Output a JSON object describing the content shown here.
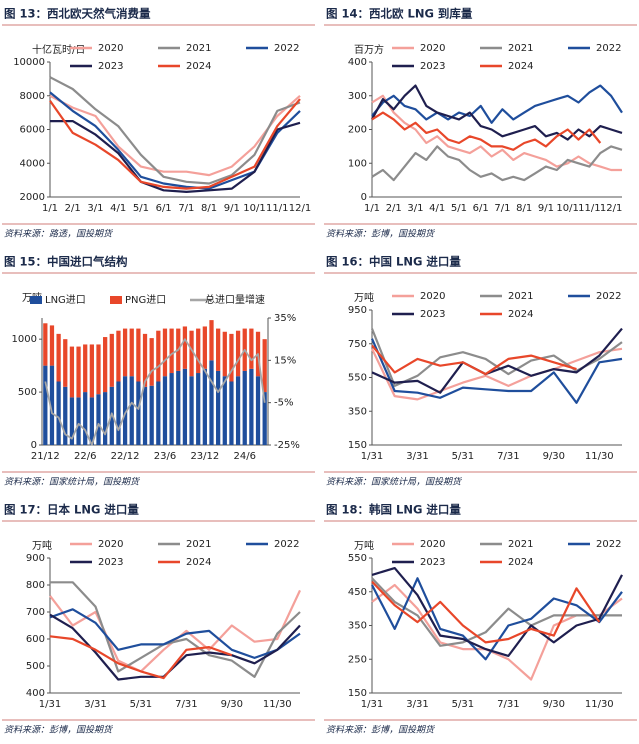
{
  "chart_data": [
    {
      "type": "line",
      "figure_title": "图 13：西北欧天然气消费量",
      "source": "资料来源：路透，国投期货",
      "ylabel": "十亿瓦时/日",
      "categories": [
        "1/1",
        "2/1",
        "3/1",
        "4/1",
        "5/1",
        "6/1",
        "7/1",
        "8/1",
        "9/1",
        "10/1",
        "11/1",
        "12/1"
      ],
      "ylim": [
        2000,
        10000
      ],
      "yticks": [
        2000,
        4000,
        6000,
        8000,
        10000
      ],
      "series": [
        {
          "name": "2020",
          "color": "#f4a09a",
          "values": [
            8000,
            7300,
            6800,
            5000,
            3800,
            3500,
            3500,
            3300,
            3800,
            5000,
            6800,
            8000
          ]
        },
        {
          "name": "2021",
          "color": "#8c8c8c",
          "values": [
            9100,
            8400,
            7200,
            6200,
            4500,
            3200,
            2900,
            2800,
            3300,
            4500,
            7100,
            7600
          ]
        },
        {
          "name": "2022",
          "color": "#1f4e9c",
          "values": [
            8200,
            7100,
            6200,
            4800,
            3200,
            2800,
            2600,
            2500,
            3000,
            3500,
            5800,
            7100
          ]
        },
        {
          "name": "2023",
          "color": "#1f1f4f",
          "values": [
            6500,
            6500,
            5700,
            4600,
            2900,
            2400,
            2300,
            2400,
            2500,
            3500,
            6000,
            6400
          ]
        },
        {
          "name": "2024",
          "color": "#e8472a",
          "values": [
            7700,
            5800,
            5100,
            4200,
            2900,
            2600,
            2500,
            2600,
            3200,
            3800,
            6200,
            7800
          ]
        }
      ]
    },
    {
      "type": "line",
      "figure_title": "图 14：西北欧 LNG 到库量",
      "source": "资料来源：彭博，国投期货",
      "ylabel": "百万方",
      "categories": [
        "1/1",
        null,
        "2/1",
        null,
        "3/1",
        null,
        "4/1",
        null,
        "5/1",
        null,
        "6/1",
        null,
        "7/1",
        null,
        "8/1",
        null,
        "9/1",
        null,
        "10/1",
        null,
        "11/1",
        null,
        "12/1",
        null
      ],
      "ylim": [
        0,
        400
      ],
      "yticks": [
        0,
        100,
        200,
        300,
        400
      ],
      "series": [
        {
          "name": "2020",
          "color": "#f4a09a",
          "values": [
            280,
            300,
            250,
            220,
            200,
            160,
            180,
            150,
            140,
            130,
            150,
            120,
            140,
            110,
            130,
            120,
            110,
            90,
            100,
            120,
            100,
            90,
            80,
            80
          ]
        },
        {
          "name": "2021",
          "color": "#8c8c8c",
          "values": [
            60,
            80,
            50,
            90,
            130,
            110,
            150,
            120,
            110,
            80,
            60,
            70,
            50,
            60,
            50,
            70,
            90,
            80,
            110,
            100,
            90,
            130,
            150,
            140
          ]
        },
        {
          "name": "2022",
          "color": "#1f4e9c",
          "values": [
            240,
            280,
            300,
            270,
            260,
            230,
            250,
            230,
            250,
            240,
            270,
            220,
            260,
            230,
            250,
            270,
            280,
            290,
            300,
            280,
            310,
            330,
            300,
            250
          ]
        },
        {
          "name": "2023",
          "color": "#1f1f4f",
          "values": [
            230,
            290,
            260,
            300,
            330,
            270,
            250,
            240,
            230,
            250,
            210,
            200,
            180,
            190,
            200,
            210,
            180,
            190,
            170,
            200,
            180,
            210,
            200,
            190
          ]
        },
        {
          "name": "2024",
          "color": "#e8472a",
          "values": [
            230,
            250,
            230,
            200,
            220,
            190,
            200,
            170,
            160,
            180,
            170,
            150,
            150,
            140,
            160,
            170,
            150,
            180,
            200,
            170,
            200,
            160,
            null,
            null
          ]
        }
      ]
    },
    {
      "type": "bar",
      "figure_title": "图 15：中国进口气结构",
      "source": "资料来源：国家统计局，国投期货",
      "ylabel": "万吨",
      "categories": [
        "21/12",
        null,
        null,
        null,
        null,
        null,
        "22/6",
        null,
        null,
        null,
        null,
        null,
        "22/12",
        null,
        null,
        null,
        null,
        null,
        "23/6",
        null,
        null,
        null,
        null,
        null,
        "23/12",
        null,
        null,
        null,
        null,
        null,
        "24/6",
        null,
        null,
        null
      ],
      "ylim": [
        0,
        1200
      ],
      "yticks": [
        0,
        500,
        1000
      ],
      "y2lim": [
        -25,
        35
      ],
      "y2ticks": [
        {
          "value": -25,
          "label": "-25%"
        },
        {
          "value": -5,
          "label": "-5%"
        },
        {
          "value": 15,
          "label": "15%"
        },
        {
          "value": 35,
          "label": "35%"
        }
      ],
      "series": [
        {
          "name": "LNG进口",
          "color": "#1f4e9c",
          "values": [
            750,
            750,
            600,
            550,
            450,
            450,
            500,
            450,
            480,
            500,
            550,
            600,
            650,
            650,
            600,
            550,
            560,
            600,
            650,
            680,
            700,
            720,
            650,
            680,
            720,
            800,
            700,
            650,
            600,
            650,
            700,
            720,
            650,
            500
          ]
        },
        {
          "name": "PNG进口",
          "color": "#e8472a",
          "values": [
            400,
            380,
            450,
            450,
            480,
            480,
            450,
            500,
            470,
            520,
            500,
            480,
            450,
            450,
            500,
            500,
            450,
            480,
            450,
            420,
            400,
            400,
            430,
            420,
            400,
            380,
            400,
            420,
            450,
            430,
            400,
            380,
            420,
            500
          ]
        },
        {
          "name": "总进口量增速",
          "color": "#a6a6a6",
          "axis": "y2",
          "values": [
            5,
            -10,
            -12,
            -20,
            -22,
            -15,
            -18,
            -25,
            -15,
            -20,
            -10,
            -18,
            -10,
            -5,
            -8,
            5,
            10,
            12,
            15,
            18,
            20,
            25,
            20,
            15,
            10,
            5,
            0,
            5,
            10,
            15,
            20,
            15,
            18,
            -5
          ]
        }
      ]
    },
    {
      "type": "line",
      "figure_title": "图 16：中国 LNG 进口量",
      "source": "资料来源：国家统计局，国投期货",
      "ylabel": "万吨",
      "categories": [
        "1/31",
        null,
        "3/31",
        null,
        "5/31",
        null,
        "7/31",
        null,
        "9/30",
        null,
        "11/30",
        null
      ],
      "ylim": [
        150,
        950
      ],
      "yticks": [
        150,
        350,
        550,
        750,
        950
      ],
      "series": [
        {
          "name": "2020",
          "color": "#f4a09a",
          "values": [
            720,
            440,
            420,
            470,
            520,
            560,
            500,
            560,
            600,
            650,
            700,
            720
          ]
        },
        {
          "name": "2021",
          "color": "#8c8c8c",
          "values": [
            840,
            500,
            560,
            670,
            700,
            660,
            570,
            650,
            680,
            590,
            660,
            760
          ]
        },
        {
          "name": "2022",
          "color": "#1f4e9c",
          "values": [
            780,
            470,
            460,
            430,
            490,
            480,
            470,
            470,
            580,
            400,
            640,
            660
          ]
        },
        {
          "name": "2023",
          "color": "#1f1f4f",
          "values": [
            580,
            520,
            530,
            460,
            640,
            570,
            620,
            560,
            600,
            580,
            680,
            840
          ]
        },
        {
          "name": "2024",
          "color": "#e8472a",
          "values": [
            740,
            580,
            660,
            620,
            640,
            570,
            660,
            680,
            640,
            600,
            null,
            null
          ]
        }
      ]
    },
    {
      "type": "line",
      "figure_title": "图 17：日本 LNG 进口量",
      "source": "资料来源：彭博，国投期货",
      "ylabel": "万吨",
      "categories": [
        "1/31",
        null,
        "3/31",
        null,
        "5/31",
        null,
        "7/31",
        null,
        "9/30",
        null,
        "11/30",
        null
      ],
      "ylim": [
        400,
        900
      ],
      "yticks": [
        400,
        500,
        600,
        700,
        800,
        900
      ],
      "series": [
        {
          "name": "2020",
          "color": "#f4a09a",
          "values": [
            760,
            650,
            700,
            520,
            480,
            560,
            630,
            560,
            650,
            590,
            600,
            780
          ]
        },
        {
          "name": "2021",
          "color": "#8c8c8c",
          "values": [
            810,
            810,
            720,
            480,
            530,
            580,
            600,
            540,
            520,
            460,
            620,
            700
          ]
        },
        {
          "name": "2022",
          "color": "#1f4e9c",
          "values": [
            680,
            710,
            660,
            560,
            580,
            580,
            620,
            630,
            560,
            530,
            560,
            620
          ]
        },
        {
          "name": "2023",
          "color": "#1f1f4f",
          "values": [
            690,
            640,
            550,
            450,
            460,
            460,
            540,
            550,
            540,
            510,
            560,
            650
          ]
        },
        {
          "name": "2024",
          "color": "#e8472a",
          "values": [
            610,
            600,
            560,
            510,
            480,
            455,
            560,
            570,
            540,
            null,
            null,
            null
          ]
        }
      ]
    },
    {
      "type": "line",
      "figure_title": "图 18：韩国 LNG 进口量",
      "source": "资料来源：彭博，国投期货",
      "ylabel": "万吨",
      "categories": [
        "1/31",
        null,
        "3/31",
        null,
        "5/31",
        null,
        "7/31",
        null,
        "9/30",
        null,
        "11/30",
        null
      ],
      "ylim": [
        150,
        550
      ],
      "yticks": [
        150,
        250,
        350,
        450,
        550
      ],
      "series": [
        {
          "name": "2020",
          "color": "#f4a09a",
          "values": [
            420,
            470,
            400,
            300,
            280,
            280,
            250,
            190,
            350,
            380,
            380,
            430
          ]
        },
        {
          "name": "2021",
          "color": "#8c8c8c",
          "values": [
            490,
            420,
            380,
            290,
            300,
            330,
            400,
            350,
            380,
            380,
            380,
            380
          ]
        },
        {
          "name": "2022",
          "color": "#1f4e9c",
          "values": [
            470,
            340,
            490,
            340,
            320,
            250,
            350,
            370,
            430,
            410,
            360,
            450
          ]
        },
        {
          "name": "2023",
          "color": "#1f1f4f",
          "values": [
            500,
            520,
            440,
            320,
            310,
            280,
            260,
            350,
            300,
            350,
            370,
            500
          ]
        },
        {
          "name": "2024",
          "color": "#e8472a",
          "values": [
            480,
            410,
            360,
            420,
            350,
            300,
            310,
            340,
            320,
            460,
            360,
            null
          ]
        }
      ]
    }
  ]
}
